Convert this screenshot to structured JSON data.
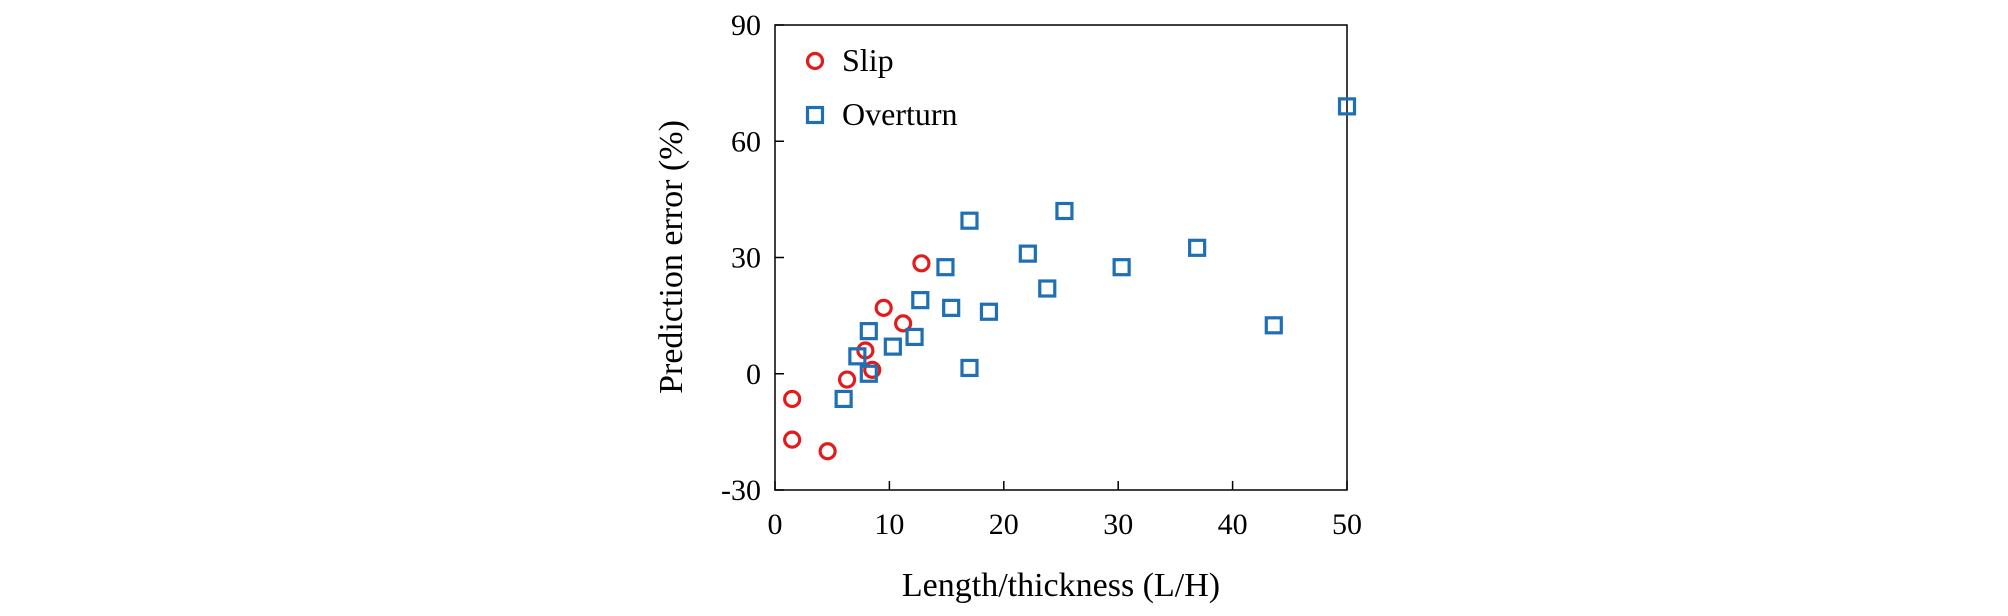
{
  "chart_data": {
    "type": "scatter",
    "title": "",
    "xlabel": "Length/thickness (L/H)",
    "ylabel": "Prediction error (%)",
    "xlim": [
      0,
      50
    ],
    "ylim": [
      -30,
      90
    ],
    "x_ticks": [
      0,
      10,
      20,
      30,
      40,
      50
    ],
    "y_ticks": [
      -30,
      0,
      30,
      60,
      90
    ],
    "x_tick_labels": [
      "0",
      "10",
      "20",
      "30",
      "40",
      "50"
    ],
    "y_tick_labels": [
      "-30",
      "0",
      "30",
      "60",
      "90"
    ],
    "grid": false,
    "legend": {
      "position": "top-left"
    },
    "series": [
      {
        "name": "Slip",
        "marker": "circle",
        "color": "#e21b1b",
        "points": [
          {
            "x": 1.5,
            "y": -6.5
          },
          {
            "x": 1.5,
            "y": -17
          },
          {
            "x": 4.6,
            "y": -20
          },
          {
            "x": 6.3,
            "y": -1.5
          },
          {
            "x": 7.9,
            "y": 6
          },
          {
            "x": 8.5,
            "y": 1
          },
          {
            "x": 9.5,
            "y": 17
          },
          {
            "x": 11.2,
            "y": 13
          },
          {
            "x": 12.8,
            "y": 28.5
          }
        ]
      },
      {
        "name": "Overturn",
        "marker": "square",
        "color": "#1f6fb4",
        "points": [
          {
            "x": 6.0,
            "y": -6.5
          },
          {
            "x": 7.2,
            "y": 4.5
          },
          {
            "x": 8.2,
            "y": 11
          },
          {
            "x": 8.2,
            "y": 0
          },
          {
            "x": 10.3,
            "y": 7
          },
          {
            "x": 12.2,
            "y": 9.5
          },
          {
            "x": 12.7,
            "y": 19
          },
          {
            "x": 14.9,
            "y": 27.5
          },
          {
            "x": 15.4,
            "y": 17
          },
          {
            "x": 17.0,
            "y": 39.5
          },
          {
            "x": 17.0,
            "y": 1.5
          },
          {
            "x": 18.7,
            "y": 16
          },
          {
            "x": 22.1,
            "y": 31
          },
          {
            "x": 23.8,
            "y": 22
          },
          {
            "x": 25.3,
            "y": 42
          },
          {
            "x": 30.3,
            "y": 27.5
          },
          {
            "x": 36.9,
            "y": 32.5
          },
          {
            "x": 43.6,
            "y": 12.5
          },
          {
            "x": 50.0,
            "y": 69
          }
        ]
      }
    ]
  }
}
